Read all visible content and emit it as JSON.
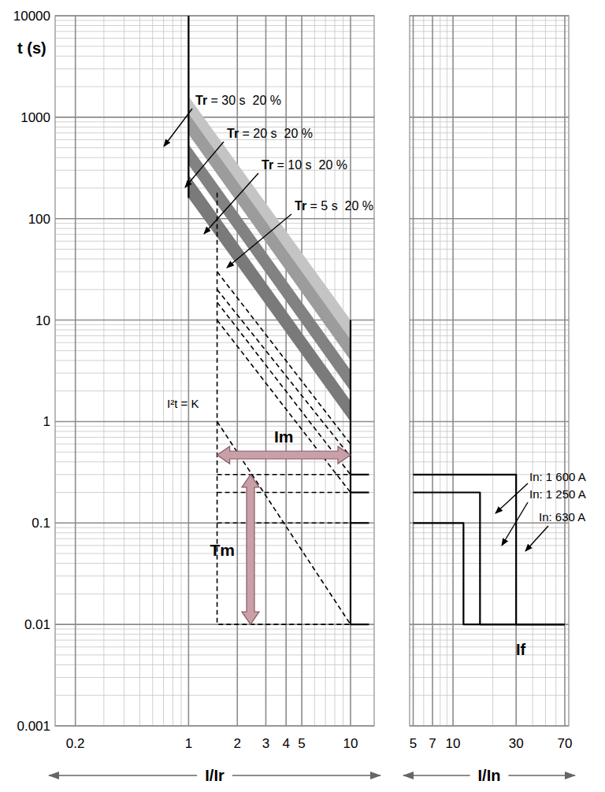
{
  "chart_data": [
    {
      "type": "line",
      "log": true,
      "grid": true,
      "y_label": "t (s)",
      "x_label": "I/Ir",
      "xlim": [
        0.15,
        14
      ],
      "xticks": [
        0.2,
        1,
        2,
        3,
        4,
        5,
        10
      ],
      "ylim": [
        0.001,
        10000
      ],
      "yticks": [
        0.001,
        0.01,
        0.1,
        1,
        10,
        100,
        1000,
        10000
      ],
      "annotations": [
        "I²t = K",
        "Im",
        "Tm"
      ],
      "series": [
        {
          "type": "area",
          "name": "Tr = 30 s  20 %",
          "color": "#c4c4c4",
          "x": [
            1,
            10
          ],
          "lower": [
            1000,
            6
          ],
          "values": [
            1600,
            10
          ]
        },
        {
          "type": "area",
          "name": "Tr = 20 s  20 %",
          "color": "#9c9c9c",
          "x": [
            1,
            10
          ],
          "lower": [
            680,
            4
          ],
          "values": [
            1080,
            6.4
          ]
        },
        {
          "type": "area",
          "name": "Tr = 10 s  20 %",
          "color": "#828282",
          "x": [
            1,
            10
          ],
          "lower": [
            340,
            2
          ],
          "values": [
            540,
            3.2
          ]
        },
        {
          "type": "area",
          "name": "Tr = 5 s  20 %",
          "color": "#7a7a7a",
          "x": [
            1,
            10
          ],
          "lower": [
            160,
            1
          ],
          "values": [
            270,
            1.6
          ]
        },
        {
          "type": "line",
          "color": "#000000",
          "line_style": "solid",
          "x": [
            1,
            1
          ],
          "values": [
            10000,
            160
          ]
        },
        {
          "type": "line",
          "color": "#000000",
          "line_style": "solid",
          "x": [
            10,
            10,
            13
          ],
          "values": [
            10,
            0.01,
            0.01
          ]
        },
        {
          "type": "line",
          "color": "#000000",
          "line_style": "solid",
          "x": [
            10,
            13
          ],
          "values": [
            0.3,
            0.3
          ]
        },
        {
          "type": "line",
          "color": "#000000",
          "line_style": "solid",
          "x": [
            10,
            13
          ],
          "values": [
            0.2,
            0.2
          ]
        },
        {
          "type": "line",
          "color": "#000000",
          "line_style": "solid",
          "x": [
            10,
            13
          ],
          "values": [
            0.1,
            0.1
          ]
        },
        {
          "type": "line",
          "color": "#000000",
          "line_style": "dashed",
          "x": [
            1.5,
            1.5,
            10
          ],
          "values": [
            180,
            0.01,
            0.01
          ]
        },
        {
          "type": "line",
          "color": "#000000",
          "line_style": "dashed",
          "x": [
            1.5,
            10
          ],
          "values": [
            0.3,
            0.3
          ]
        },
        {
          "type": "line",
          "color": "#000000",
          "line_style": "dashed",
          "x": [
            1.5,
            10
          ],
          "values": [
            0.2,
            0.2
          ]
        },
        {
          "type": "line",
          "color": "#000000",
          "line_style": "dashed",
          "x": [
            1.5,
            10
          ],
          "values": [
            0.1,
            0.1
          ]
        },
        {
          "type": "line",
          "color": "#000000",
          "line_style": "dashed",
          "x": [
            1.5,
            10
          ],
          "values": [
            30,
            0.6
          ]
        },
        {
          "type": "line",
          "color": "#000000",
          "line_style": "dashed",
          "x": [
            1.5,
            10
          ],
          "values": [
            20,
            0.45
          ]
        },
        {
          "type": "line",
          "color": "#000000",
          "line_style": "dashed",
          "x": [
            1.5,
            10
          ],
          "values": [
            15,
            0.3
          ]
        },
        {
          "type": "line",
          "color": "#000000",
          "line_style": "dashed",
          "x": [
            1.5,
            10
          ],
          "values": [
            10,
            0.2
          ]
        },
        {
          "type": "line",
          "color": "#000000",
          "line_style": "dashed",
          "x": [
            1.5,
            10
          ],
          "values": [
            1,
            0.01
          ]
        }
      ]
    },
    {
      "type": "line",
      "log": true,
      "grid": true,
      "tick_labels": "x",
      "x_label": "I/In",
      "xlim": [
        4.7,
        75
      ],
      "xticks": [
        5,
        7,
        10,
        30,
        70
      ],
      "ylim": [
        0.001,
        10000
      ],
      "yticks": [
        0.001,
        0.01,
        0.1,
        1,
        10,
        100,
        1000,
        10000
      ],
      "annotations": [
        "If"
      ],
      "series": [
        {
          "type": "line",
          "name": "In: 1 600 A",
          "color": "#000000",
          "line_style": "solid",
          "x": [
            5,
            12,
            12,
            70
          ],
          "values": [
            0.1,
            0.1,
            0.01,
            0.01
          ]
        },
        {
          "type": "line",
          "name": "In: 1 250 A",
          "color": "#000000",
          "line_style": "solid",
          "x": [
            5,
            16,
            16,
            70
          ],
          "values": [
            0.2,
            0.2,
            0.01,
            0.01
          ]
        },
        {
          "type": "line",
          "name": "In: 630 A",
          "color": "#000000",
          "line_style": "solid",
          "x": [
            5,
            30,
            30,
            70
          ],
          "values": [
            0.3,
            0.3,
            0.01,
            0.01
          ]
        }
      ]
    }
  ]
}
